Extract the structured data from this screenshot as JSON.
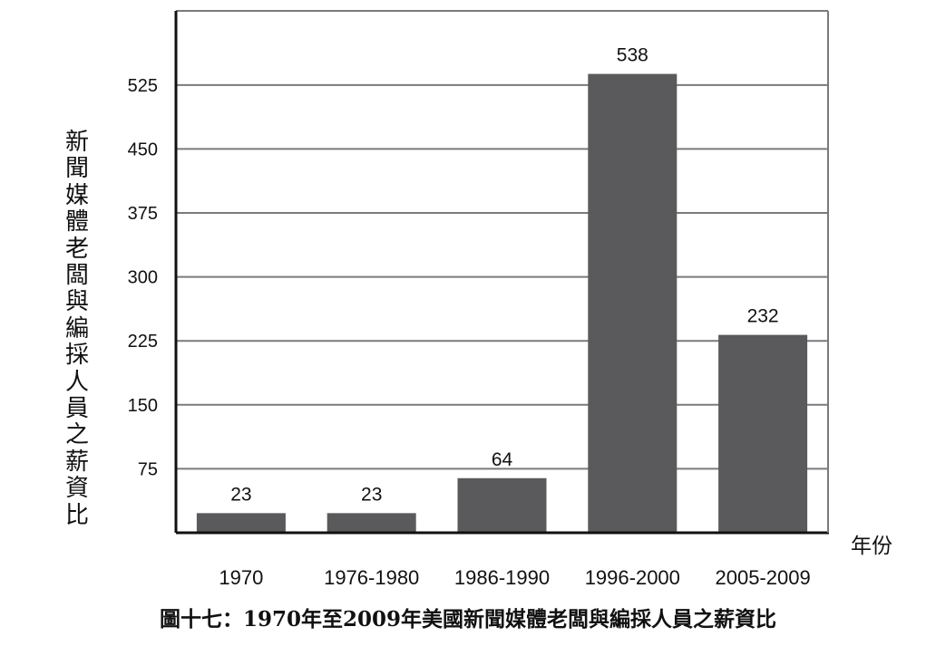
{
  "chart_data": {
    "type": "bar",
    "categories": [
      "1970",
      "1976-1980",
      "1986-1990",
      "1996-2000",
      "2005-2009"
    ],
    "values": [
      23,
      23,
      64,
      538,
      232
    ],
    "title": "",
    "xlabel": "年份",
    "ylabel": "新聞媒體老闆與編採人員之薪資比",
    "yticks": [
      75,
      150,
      225,
      300,
      375,
      450,
      525
    ],
    "ylim": [
      0,
      600
    ],
    "grid": true,
    "bar_color": "#5a5a5c"
  },
  "caption": "圖十七：1970年至2009年美國新聞媒體老闆與編採人員之薪資比"
}
